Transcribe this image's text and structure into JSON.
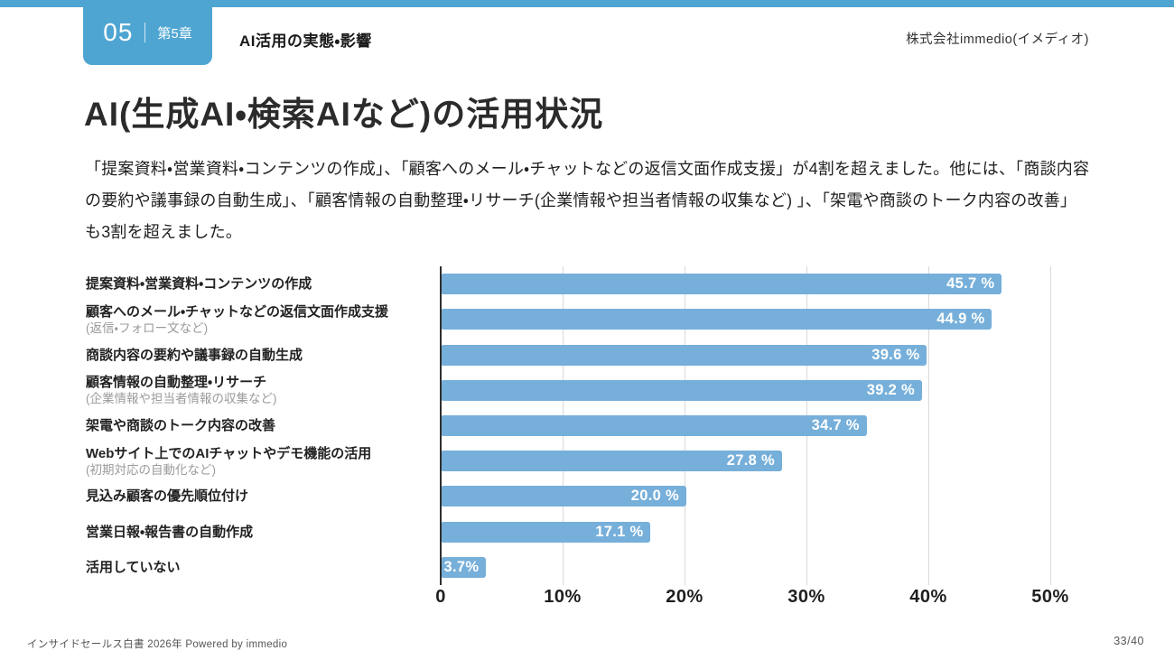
{
  "header": {
    "chapter_number": "05",
    "chapter_label": "第5章",
    "section_title": "AI活用の実態・影響",
    "company": "株式会社immedio(イメディオ)"
  },
  "title": "AI(生成AI・検索AIなど)の活用状況",
  "paragraph": "「提案資料・営業資料・コンテンツの作成」、「顧客へのメール・チャットなどの返信文面作成支援」が4割を超えました。他には、「商談内容の要約や議事録の自動生成」、「顧客情報の自動整理・リサーチ(企業情報や担当者情報の収集など) 」、「架電や商談のトーク内容の改善」も3割を超えました。",
  "chart_data": {
    "type": "bar",
    "orientation": "horizontal",
    "categories": [
      "提案資料・営業資料・コンテンツの作成",
      "顧客へのメール・チャットなどの返信文面作成支援",
      "商談内容の要約や議事録の自動生成",
      "顧客情報の自動整理・リサーチ",
      "架電や商談のトーク内容の改善",
      "Webサイト上でのAIチャットやデモ機能の活用",
      "見込み顧客の優先順位付け",
      "営業日報・報告書の自動作成",
      "活用していない"
    ],
    "sub_labels": [
      "",
      "(返信・フォロー文など)",
      "",
      "(企業情報や担当者情報の収集など)",
      "",
      "(初期対応の自動化など)",
      "",
      "",
      ""
    ],
    "values": [
      45.7,
      44.9,
      39.6,
      39.2,
      34.7,
      27.8,
      20.0,
      17.1,
      3.7
    ],
    "value_labels": [
      "45.7 %",
      "44.9 %",
      "39.6 %",
      "39.2 %",
      "34.7 %",
      "27.8 %",
      "20.0 %",
      "17.1 %",
      "3.7%"
    ],
    "x_ticks": [
      {
        "value": 0,
        "label": "0"
      },
      {
        "value": 10,
        "label": "10%"
      },
      {
        "value": 20,
        "label": "20%"
      },
      {
        "value": 30,
        "label": "30%"
      },
      {
        "value": 40,
        "label": "40%"
      },
      {
        "value": 50,
        "label": "50%"
      }
    ],
    "xlim": [
      0,
      52
    ],
    "grid": true,
    "legend": "none",
    "title": "",
    "xlabel": "",
    "ylabel": ""
  },
  "colors": {
    "accent_blue": "#4FA5D2",
    "bar_blue": "#76AFDA",
    "gridline_gray": "#d9d9d9",
    "axis_dark": "#2f2f2f"
  },
  "footer": {
    "left": "インサイドセールス白書 2026年 Powered by immedio",
    "right": "33/40"
  }
}
